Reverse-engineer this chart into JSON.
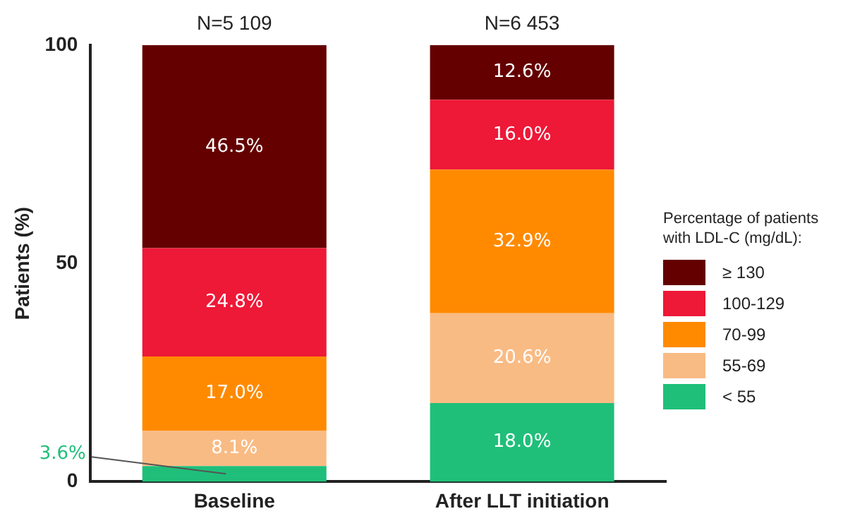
{
  "chart_data": {
    "type": "bar",
    "stacked": true,
    "ylabel": "Patients (%)",
    "legend_title": "Percentage of patients with LDL-C (mg/dL):",
    "legend": "right",
    "grid": false,
    "categories": [
      "Baseline",
      "After LLT initiation"
    ],
    "ylim": [
      0,
      100
    ],
    "yticks": [
      0,
      50,
      100
    ],
    "series": [
      {
        "name": "< 55",
        "color": "#1fbf7a",
        "values": [
          3.6,
          18.0
        ],
        "value_labels": [
          "3.6%",
          "18.0%"
        ]
      },
      {
        "name": "55-69",
        "color": "#f9bb84",
        "values": [
          8.1,
          20.6
        ],
        "value_labels": [
          "8.1%",
          "20.6%"
        ]
      },
      {
        "name": "70-99",
        "color": "#ff8a00",
        "values": [
          17.0,
          32.9
        ],
        "value_labels": [
          "17.0%",
          "32.9%"
        ]
      },
      {
        "name": "100-129",
        "color": "#ee1837",
        "values": [
          24.8,
          16.0
        ],
        "value_labels": [
          "24.8%",
          "16.0%"
        ]
      },
      {
        "name": "≥ 130",
        "color": "#640000",
        "values": [
          46.5,
          12.6
        ],
        "value_labels": [
          "46.5%",
          "12.6%"
        ]
      }
    ],
    "annotations": [
      {
        "text": "N=5 109",
        "x": "Baseline",
        "y": 100
      },
      {
        "text": "N=6 453",
        "x": "After LLT initiation",
        "y": 100
      }
    ]
  }
}
